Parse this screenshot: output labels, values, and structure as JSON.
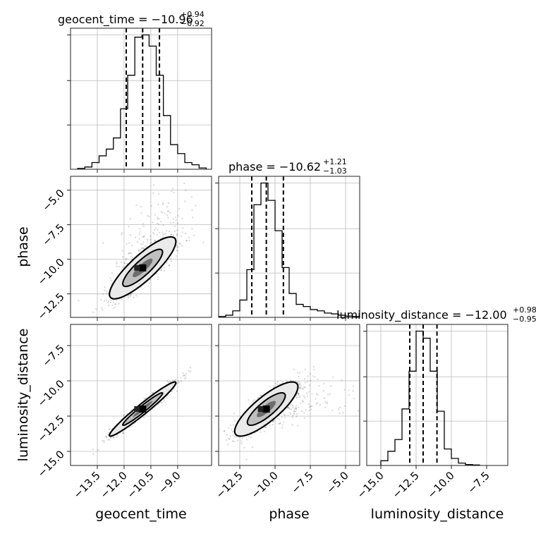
{
  "chart_data": {
    "type": "corner",
    "parameters": [
      "geocent_time",
      "phase",
      "luminosity_distance"
    ],
    "quantiles": [
      0.16,
      0.5,
      0.84
    ],
    "grid": true,
    "marginals": [
      {
        "parameter": "geocent_time",
        "title": {
          "main": "geocent_time = −10.96",
          "plus": "+0.94",
          "minus": "−0.92"
        },
        "median": -10.96,
        "lower": -11.88,
        "upper": -10.02,
        "xlim": [
          -15.0,
          -7.1
        ],
        "bin_edges": [
          -14.6,
          -14.2,
          -13.8,
          -13.4,
          -13.0,
          -12.6,
          -12.2,
          -11.8,
          -11.4,
          -11.0,
          -10.6,
          -10.2,
          -9.8,
          -9.4,
          -9.0,
          -8.6,
          -8.2,
          -7.8,
          -7.4
        ],
        "counts": [
          2,
          5,
          15,
          30,
          45,
          70,
          135,
          210,
          295,
          300,
          275,
          210,
          120,
          55,
          35,
          15,
          10,
          3
        ],
        "tick_values": [
          -13.5,
          -12.0,
          -10.5,
          -9.0
        ],
        "tick_labels": [
          "−13.5",
          "−12.0",
          "−10.5",
          "−9.0"
        ]
      },
      {
        "parameter": "phase",
        "title": {
          "main": "phase = −10.62",
          "plus": "+1.21",
          "minus": "−1.03"
        },
        "median": -10.62,
        "lower": -11.65,
        "upper": -9.41,
        "xlim": [
          -14.0,
          -4.0
        ],
        "bin_edges": [
          -14.0,
          -13.5,
          -13.0,
          -12.5,
          -12.0,
          -11.5,
          -11.0,
          -10.5,
          -10.0,
          -9.5,
          -9.0,
          -8.5,
          -8.0,
          -7.5,
          -7.0,
          -6.5,
          -6.0,
          -5.5,
          -5.0,
          -4.5,
          -4.0
        ],
        "counts": [
          2,
          5,
          15,
          40,
          110,
          260,
          310,
          270,
          200,
          115,
          55,
          30,
          25,
          18,
          15,
          10,
          8,
          5,
          3,
          2
        ],
        "tick_values": [
          -12.5,
          -10.0,
          -7.5,
          -5.0
        ],
        "tick_labels": [
          "−12.5",
          "−10.0",
          "−7.5",
          "−5.0"
        ]
      },
      {
        "parameter": "luminosity_distance",
        "title": {
          "main": "luminosity_distance = −12.00",
          "plus": "+0.98",
          "minus": "−0.95"
        },
        "median": -12.0,
        "lower": -12.95,
        "upper": -11.02,
        "xlim": [
          -16.0,
          -6.0
        ],
        "bin_edges": [
          -15.0,
          -14.5,
          -14.0,
          -13.5,
          -13.0,
          -12.5,
          -12.0,
          -11.5,
          -11.0,
          -10.5,
          -10.0,
          -9.5,
          -9.0,
          -8.5,
          -8.0
        ],
        "counts": [
          10,
          30,
          55,
          120,
          200,
          285,
          270,
          200,
          115,
          35,
          15,
          5,
          2,
          1
        ],
        "tick_values": [
          -15.0,
          -12.5,
          -10.0,
          -7.5
        ],
        "tick_labels": [
          "−15.0",
          "−12.5",
          "−10.0",
          "−7.5"
        ]
      }
    ],
    "pairs": [
      {
        "x": "geocent_time",
        "y": "phase",
        "xlim": [
          -15.0,
          -7.1
        ],
        "ylim": [
          -14.2,
          -4.0
        ],
        "y_tick_values": [
          -5.0,
          -7.5,
          -10.0,
          -12.5
        ],
        "y_tick_labels": [
          "−5.0",
          "−7.5",
          "−10.0",
          "−12.5"
        ],
        "center": [
          -10.96,
          -10.62
        ],
        "sigma_x": 0.93,
        "sigma_y": 1.12,
        "corr": 0.85
      },
      {
        "x": "geocent_time",
        "y": "luminosity_distance",
        "xlim": [
          -15.0,
          -7.1
        ],
        "ylim": [
          -16.0,
          -6.0
        ],
        "y_tick_values": [
          -7.5,
          -10.0,
          -12.5,
          -15.0
        ],
        "y_tick_labels": [
          "−7.5",
          "−10.0",
          "−12.5",
          "−15.0"
        ],
        "center": [
          -10.96,
          -12.0
        ],
        "sigma_x": 0.93,
        "sigma_y": 0.96,
        "corr": 0.97
      },
      {
        "x": "phase",
        "y": "luminosity_distance",
        "xlim": [
          -14.0,
          -4.0
        ],
        "ylim": [
          -16.0,
          -6.0
        ],
        "center": [
          -10.62,
          -12.0
        ],
        "sigma_x": 1.12,
        "sigma_y": 0.96,
        "corr": 0.82
      }
    ],
    "xlabels": [
      "geocent_time",
      "phase",
      "luminosity_distance"
    ],
    "ylabels": [
      "phase",
      "luminosity_distance"
    ]
  }
}
